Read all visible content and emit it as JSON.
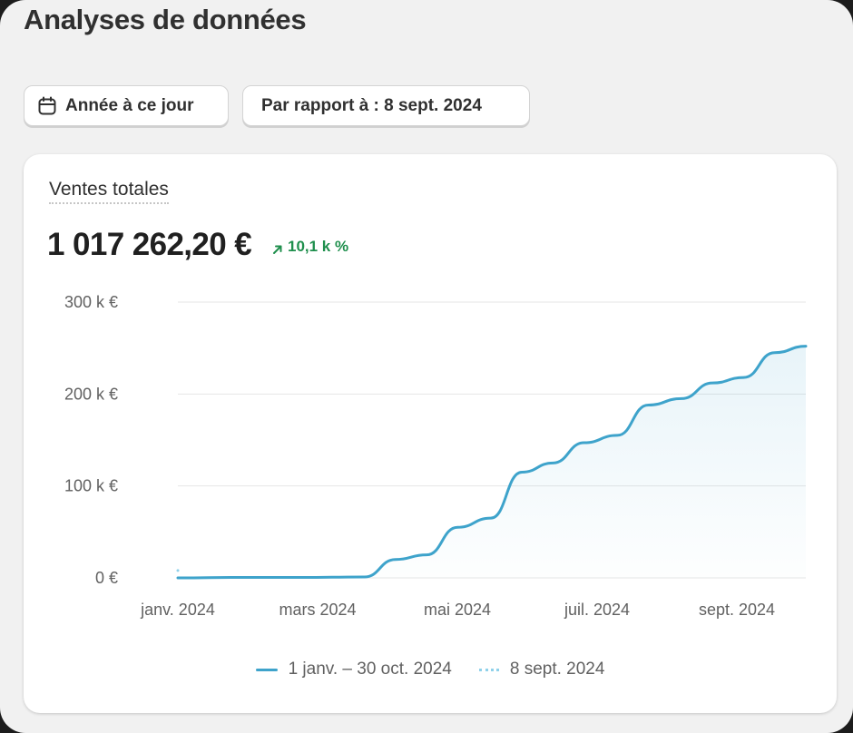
{
  "page": {
    "title": "Analyses de données"
  },
  "filters": {
    "date_range_label": "Année à ce jour",
    "compare_label": "Par rapport à : 8 sept. 2024"
  },
  "card": {
    "metric_title": "Ventes totales",
    "metric_value": "1 017 262,20 €",
    "metric_change": "10,1 k %",
    "change_color": "#1f8f4d"
  },
  "icons": {
    "date_range": "calendar-icon",
    "change": "arrow-up-right-icon"
  },
  "chart_data": {
    "type": "line",
    "y_ticks": [
      "300 k €",
      "200 k €",
      "100 k €",
      "0 €"
    ],
    "x_ticks": [
      "janv. 2024",
      "mars 2024",
      "mai 2024",
      "juil. 2024",
      "sept. 2024"
    ],
    "ylim": [
      0,
      300000
    ],
    "grid": true,
    "legend_position": "bottom",
    "series": [
      {
        "name": "1 janv. – 30 oct. 2024",
        "color": "#3ea3cb",
        "style": "solid",
        "points": [
          [
            "2024-01-01",
            0
          ],
          [
            "2024-01-31",
            500
          ],
          [
            "2024-02-29",
            500
          ],
          [
            "2024-03-31",
            1000
          ],
          [
            "2024-04-15",
            20000
          ],
          [
            "2024-04-30",
            25000
          ],
          [
            "2024-05-15",
            55000
          ],
          [
            "2024-05-31",
            65000
          ],
          [
            "2024-06-15",
            115000
          ],
          [
            "2024-06-30",
            125000
          ],
          [
            "2024-07-15",
            147000
          ],
          [
            "2024-07-31",
            155000
          ],
          [
            "2024-08-15",
            188000
          ],
          [
            "2024-08-31",
            195000
          ],
          [
            "2024-09-15",
            212000
          ],
          [
            "2024-09-30",
            218000
          ],
          [
            "2024-10-15",
            245000
          ],
          [
            "2024-10-30",
            252000
          ]
        ]
      },
      {
        "name": "8 sept. 2024",
        "color": "#8fd1ea",
        "style": "dotted",
        "points": [
          [
            "2024-01-01",
            8000
          ]
        ]
      }
    ]
  }
}
